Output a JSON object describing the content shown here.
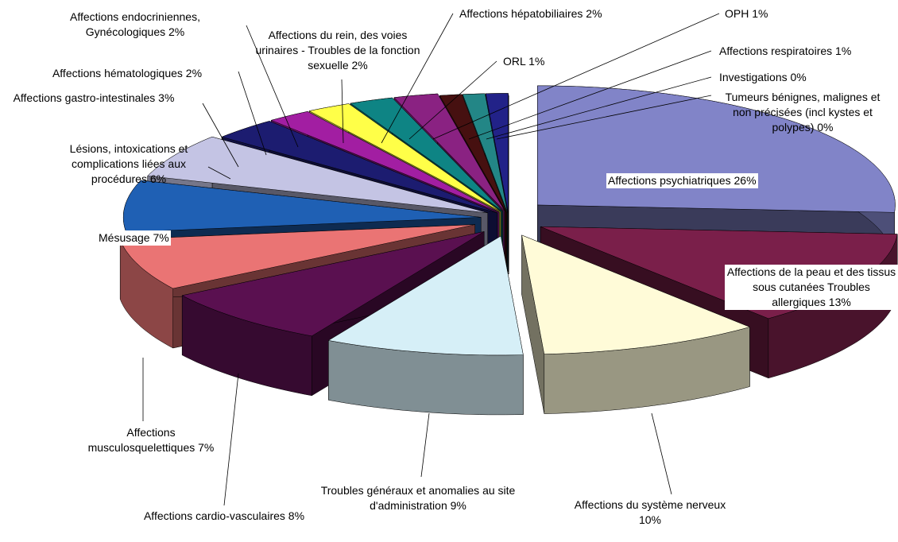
{
  "chart_data": {
    "type": "pie3d",
    "categories": [
      "Affections psychiatriques 26%",
      "Affections de la peau et des tissus sous cutanées Troubles allergiques 13%",
      "Affections du système nerveux 10%",
      "Troubles généraux et anomalies au site d'administration 9%",
      "Affections cardio-vasculaires 8%",
      "Affections musculosquelettiques 7%",
      "Mésusage 7%",
      "Lésions, intoxications et complications liées aux procédures 6%",
      "Affections gastro-intestinales 3%",
      "Affections hématologiques 2%",
      "Affections endocriniennes, Gynécologiques 2%",
      "Affections du rein, des voies urinaires - Troubles de la fonction sexuelle 2%",
      "Affections hépatobiliaires 2%",
      "ORL 1%",
      "OPH 1%",
      "Affections respiratoires 1%",
      "Investigations 0%",
      "Tumeurs bénignes, malignes et non précisées (incl kystes et polypes) 0%"
    ],
    "values": [
      26,
      13,
      10,
      9,
      8,
      7,
      7,
      6,
      3,
      2,
      2,
      2,
      2,
      1,
      1,
      1,
      0,
      0
    ],
    "colors": [
      "#8184c8",
      "#7a1f4a",
      "#fffbd8",
      "#d6eff7",
      "#5a1050",
      "#ea7474",
      "#1f60b4",
      "#c4c4e4",
      "#1c1c70",
      "#a21ea2",
      "#ffff48",
      "#0e8484",
      "#8a2282",
      "#461010",
      "#238686",
      "#222288",
      "#42c4f2",
      "#ffffff"
    ]
  }
}
